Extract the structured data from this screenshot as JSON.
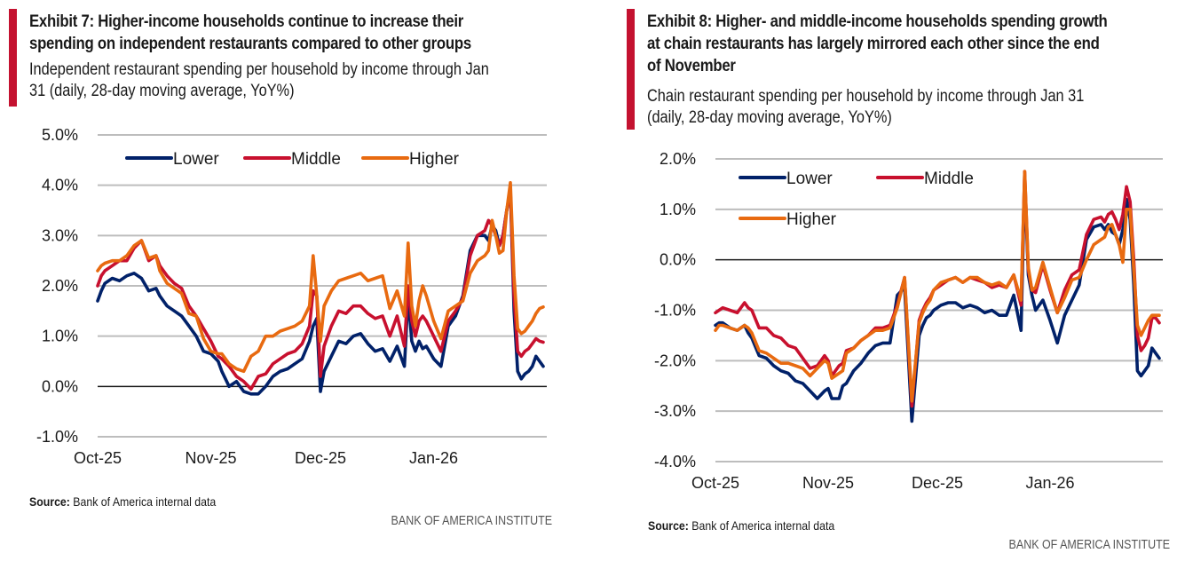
{
  "colors": {
    "accent": "#c41230",
    "lower": "#012169",
    "middle": "#c8102e",
    "higher": "#e86a10",
    "grid": "#bdbdbd",
    "zero": "#1a1a1a"
  },
  "chart_data": [
    {
      "type": "line",
      "title": "Exhibit 7: Higher-income households continue to increase their spending on independent restaurants compared to other groups",
      "title_lines": [
        "Exhibit 7: Higher-income households continue to increase their",
        "spending on independent restaurants compared to other groups"
      ],
      "subtitle_lines": [
        "Independent restaurant spending per household by income through Jan",
        "31 (daily, 28-day moving average, YoY%)"
      ],
      "xlabel": "",
      "ylabel": "",
      "x_tick_labels": [
        "Oct-25",
        "Nov-25",
        "Dec-25",
        "Jan-26"
      ],
      "x_tick_days": [
        0,
        31,
        61,
        92
      ],
      "x_range_days": [
        0,
        122
      ],
      "ylim": [
        -1.0,
        5.0
      ],
      "y_ticks": [
        5.0,
        4.0,
        3.0,
        2.0,
        1.0,
        0.0,
        -1.0
      ],
      "y_tick_labels": [
        "5.0%",
        "4.0%",
        "3.0%",
        "2.0%",
        "1.0%",
        "0.0%",
        "-1.0%"
      ],
      "grid": true,
      "legend": {
        "placement": "top",
        "entries": [
          "Lower",
          "Middle",
          "Higher"
        ]
      },
      "x_day": [
        0,
        1,
        2,
        4,
        6,
        8,
        10,
        12,
        14,
        16,
        17,
        19,
        21,
        23,
        25,
        27,
        29,
        31,
        33,
        34,
        36,
        38,
        40,
        42,
        44,
        46,
        48,
        50,
        52,
        54,
        56,
        58,
        59,
        60,
        61,
        62,
        64,
        66,
        68,
        70,
        72,
        74,
        76,
        78,
        80,
        82,
        84,
        85,
        86,
        87,
        88,
        89,
        90,
        92,
        94,
        96,
        98,
        100,
        102,
        104,
        106,
        107,
        108,
        109,
        110,
        111,
        112,
        113,
        114,
        115,
        116,
        117,
        118,
        119,
        120,
        121,
        122
      ],
      "series": [
        {
          "name": "Lower",
          "values": [
            1.7,
            1.9,
            2.05,
            2.15,
            2.1,
            2.2,
            2.25,
            2.15,
            1.9,
            1.95,
            1.8,
            1.6,
            1.5,
            1.4,
            1.2,
            1.0,
            0.7,
            0.65,
            0.5,
            0.3,
            0.0,
            0.1,
            -0.1,
            -0.15,
            -0.15,
            0.0,
            0.2,
            0.3,
            0.35,
            0.45,
            0.55,
            0.9,
            1.2,
            1.35,
            -0.1,
            0.3,
            0.6,
            0.9,
            0.85,
            1.0,
            1.05,
            0.85,
            0.7,
            0.75,
            0.5,
            0.8,
            0.4,
            1.8,
            0.9,
            0.7,
            0.9,
            0.75,
            0.8,
            0.55,
            0.4,
            1.2,
            1.4,
            1.8,
            2.7,
            3.0,
            3.0,
            2.9,
            3.2,
            3.1,
            2.8,
            3.0,
            3.5,
            3.9,
            1.5,
            0.3,
            0.15,
            0.25,
            0.3,
            0.4,
            0.6,
            0.5,
            0.4
          ]
        },
        {
          "name": "Middle",
          "values": [
            2.0,
            2.2,
            2.3,
            2.4,
            2.5,
            2.5,
            2.75,
            2.9,
            2.5,
            2.6,
            2.4,
            2.2,
            2.05,
            1.95,
            1.6,
            1.4,
            1.15,
            0.9,
            0.6,
            0.55,
            0.4,
            0.2,
            0.1,
            -0.05,
            0.2,
            0.25,
            0.45,
            0.55,
            0.65,
            0.7,
            0.85,
            1.2,
            1.9,
            1.8,
            0.2,
            0.8,
            1.2,
            1.5,
            1.45,
            1.6,
            1.6,
            1.45,
            1.35,
            1.4,
            1.0,
            1.4,
            0.8,
            2.0,
            1.3,
            1.0,
            1.3,
            1.4,
            1.3,
            1.0,
            0.7,
            1.3,
            1.5,
            1.75,
            2.6,
            3.0,
            3.1,
            3.3,
            3.2,
            3.0,
            2.8,
            3.0,
            3.5,
            3.9,
            1.8,
            0.7,
            0.6,
            0.7,
            0.75,
            0.85,
            0.95,
            0.9,
            0.88
          ]
        },
        {
          "name": "Higher",
          "values": [
            2.3,
            2.4,
            2.45,
            2.5,
            2.5,
            2.6,
            2.8,
            2.9,
            2.55,
            2.6,
            2.3,
            2.05,
            1.95,
            1.85,
            1.45,
            1.4,
            0.95,
            0.7,
            0.65,
            0.65,
            0.45,
            0.35,
            0.3,
            0.6,
            0.7,
            1.0,
            1.0,
            1.1,
            1.15,
            1.2,
            1.3,
            1.6,
            2.6,
            1.8,
            0.9,
            1.6,
            1.9,
            2.1,
            2.15,
            2.2,
            2.25,
            2.1,
            2.15,
            2.2,
            1.55,
            1.9,
            1.4,
            2.85,
            1.6,
            1.2,
            1.7,
            2.0,
            1.8,
            1.3,
            0.95,
            1.5,
            1.6,
            1.7,
            2.25,
            2.5,
            2.6,
            2.7,
            3.3,
            3.0,
            2.65,
            2.7,
            3.5,
            4.05,
            2.2,
            1.15,
            1.05,
            1.1,
            1.2,
            1.3,
            1.45,
            1.55,
            1.58
          ]
        }
      ],
      "source_label": "Source:",
      "source_text": " Bank of America internal data",
      "brand": "BANK OF AMERICA INSTITUTE"
    },
    {
      "type": "line",
      "title": "Exhibit 8: Higher- and middle-income households spending growth at chain restaurants has largely mirrored each other since the end of November",
      "title_lines": [
        "Exhibit 8: Higher- and middle-income households spending growth",
        "at chain restaurants has largely mirrored each other since the end",
        "of November"
      ],
      "subtitle_lines": [
        "Chain restaurant spending per household by income through Jan 31",
        "(daily, 28-day moving average, YoY%)"
      ],
      "xlabel": "",
      "ylabel": "",
      "x_tick_labels": [
        "Oct-25",
        "Nov-25",
        "Dec-25",
        "Jan-26"
      ],
      "x_tick_days": [
        0,
        31,
        61,
        92
      ],
      "x_range_days": [
        0,
        122
      ],
      "ylim": [
        -4.0,
        2.0
      ],
      "y_ticks": [
        2.0,
        1.0,
        0.0,
        -1.0,
        -2.0,
        -3.0,
        -4.0
      ],
      "y_tick_labels": [
        "2.0%",
        "1.0%",
        "0.0%",
        "-1.0%",
        "-2.0%",
        "-3.0%",
        "-4.0%"
      ],
      "grid": true,
      "legend": {
        "placement": "top-left",
        "entries": [
          "Lower",
          "Middle",
          "Higher"
        ]
      },
      "x_day": [
        0,
        1,
        2,
        4,
        6,
        8,
        9,
        10,
        12,
        14,
        16,
        18,
        20,
        22,
        24,
        26,
        28,
        30,
        31,
        32,
        34,
        35,
        36,
        38,
        40,
        42,
        44,
        46,
        48,
        50,
        52,
        54,
        56,
        57,
        58,
        59,
        60,
        62,
        64,
        66,
        68,
        70,
        72,
        74,
        76,
        78,
        80,
        82,
        84,
        85,
        86,
        87,
        88,
        90,
        92,
        94,
        96,
        98,
        100,
        102,
        104,
        106,
        107,
        108,
        109,
        110,
        111,
        112,
        113,
        114,
        115,
        116,
        117,
        118,
        119,
        120,
        121,
        122
      ],
      "series": [
        {
          "name": "Lower",
          "values": [
            -1.3,
            -1.25,
            -1.25,
            -1.35,
            -1.4,
            -1.3,
            -1.45,
            -1.55,
            -1.9,
            -1.95,
            -2.1,
            -2.2,
            -2.25,
            -2.4,
            -2.45,
            -2.6,
            -2.75,
            -2.6,
            -2.55,
            -2.75,
            -2.75,
            -2.5,
            -2.45,
            -2.2,
            -2.05,
            -1.85,
            -1.7,
            -1.65,
            -1.65,
            -0.7,
            -0.55,
            -3.2,
            -1.5,
            -1.3,
            -1.15,
            -1.1,
            -1.0,
            -0.9,
            -0.85,
            -0.85,
            -0.95,
            -0.9,
            -0.95,
            -1.05,
            -1.0,
            -1.1,
            -1.1,
            -0.7,
            -1.4,
            1.6,
            -0.3,
            -0.7,
            -1.0,
            -0.8,
            -1.2,
            -1.65,
            -1.1,
            -0.8,
            -0.5,
            0.4,
            0.65,
            0.7,
            0.6,
            0.7,
            0.55,
            0.5,
            0.3,
            0.6,
            1.2,
            0.8,
            -0.5,
            -2.2,
            -2.3,
            -2.2,
            -2.1,
            -1.75,
            -1.85,
            -1.95
          ]
        },
        {
          "name": "Middle",
          "values": [
            -1.05,
            -1.0,
            -0.95,
            -1.0,
            -1.05,
            -0.85,
            -0.95,
            -1.0,
            -1.35,
            -1.35,
            -1.5,
            -1.55,
            -1.7,
            -1.75,
            -1.95,
            -2.15,
            -2.1,
            -1.9,
            -2.0,
            -2.3,
            -2.1,
            -2.05,
            -1.8,
            -1.75,
            -1.6,
            -1.5,
            -1.35,
            -1.35,
            -1.3,
            -0.9,
            -0.35,
            -2.9,
            -1.2,
            -1.0,
            -0.85,
            -0.75,
            -0.6,
            -0.5,
            -0.4,
            -0.35,
            -0.45,
            -0.35,
            -0.4,
            -0.45,
            -0.55,
            -0.5,
            -0.55,
            -0.3,
            -0.9,
            1.75,
            -0.2,
            -0.6,
            -0.65,
            -0.1,
            -0.6,
            -1.05,
            -0.6,
            -0.3,
            -0.2,
            0.5,
            0.8,
            0.85,
            0.75,
            0.9,
            0.95,
            0.8,
            0.6,
            0.9,
            1.45,
            1.15,
            0.0,
            -1.5,
            -1.8,
            -1.7,
            -1.55,
            -1.15,
            -1.15,
            -1.25
          ]
        },
        {
          "name": "Higher",
          "values": [
            -1.4,
            -1.3,
            -1.3,
            -1.35,
            -1.4,
            -1.3,
            -1.35,
            -1.45,
            -1.8,
            -1.85,
            -1.95,
            -2.05,
            -2.05,
            -2.1,
            -2.15,
            -2.3,
            -2.15,
            -2.0,
            -2.05,
            -2.35,
            -2.25,
            -2.2,
            -1.85,
            -1.75,
            -1.6,
            -1.5,
            -1.4,
            -1.4,
            -1.35,
            -0.95,
            -0.35,
            -2.8,
            -1.25,
            -1.05,
            -0.9,
            -0.8,
            -0.6,
            -0.45,
            -0.4,
            -0.35,
            -0.45,
            -0.35,
            -0.35,
            -0.45,
            -0.5,
            -0.45,
            -0.55,
            -0.3,
            -0.8,
            1.75,
            -0.15,
            -0.6,
            -0.55,
            -0.05,
            -0.55,
            -1.05,
            -0.75,
            -0.4,
            -0.35,
            0.0,
            0.3,
            0.4,
            0.45,
            0.65,
            0.7,
            0.5,
            0.3,
            -0.05,
            1.0,
            1.0,
            -0.2,
            -1.3,
            -1.5,
            -1.35,
            -1.2,
            -1.1,
            -1.1,
            -1.1
          ]
        }
      ],
      "source_label": "Source:",
      "source_text": " Bank of America internal data",
      "brand": "BANK OF AMERICA INSTITUTE"
    }
  ]
}
